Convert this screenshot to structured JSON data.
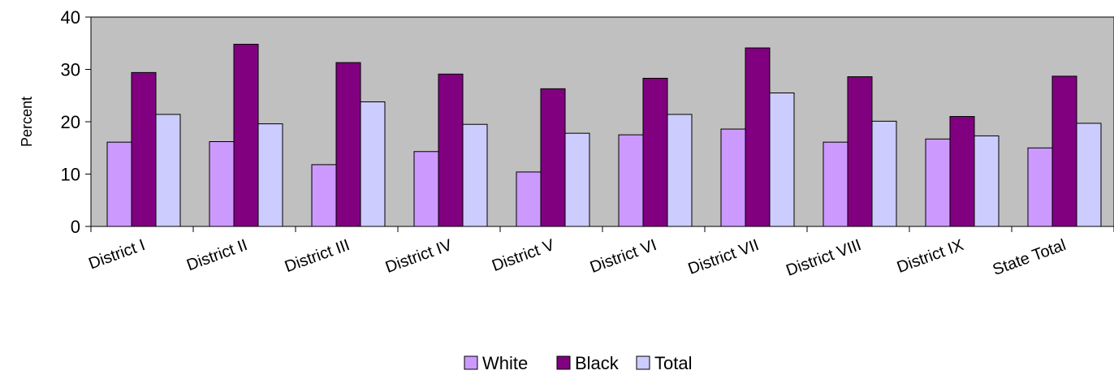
{
  "chart_data": {
    "type": "bar",
    "title": "",
    "xlabel": "",
    "ylabel": "Percent",
    "ylim": [
      0,
      40
    ],
    "yticks": [
      0,
      10,
      20,
      30,
      40
    ],
    "grid": false,
    "legend_position": "bottom",
    "plot_background": "#C0C0C0",
    "categories": [
      "District I",
      "District II",
      "District III",
      "District IV",
      "District V",
      "District VI",
      "District VII",
      "District VIII",
      "District IX",
      "State Total"
    ],
    "series": [
      {
        "name": "White",
        "color": "#CC99FF",
        "values": [
          16.1,
          16.2,
          11.8,
          14.3,
          10.4,
          17.5,
          18.6,
          16.1,
          16.7,
          15.0
        ]
      },
      {
        "name": "Black",
        "color": "#800080",
        "values": [
          29.4,
          34.8,
          31.3,
          29.1,
          26.3,
          28.3,
          34.1,
          28.6,
          21.0,
          28.7
        ]
      },
      {
        "name": "Total",
        "color": "#CCCCFF",
        "values": [
          21.4,
          19.6,
          23.8,
          19.5,
          17.8,
          21.4,
          25.5,
          20.1,
          17.3,
          19.7
        ]
      }
    ]
  }
}
